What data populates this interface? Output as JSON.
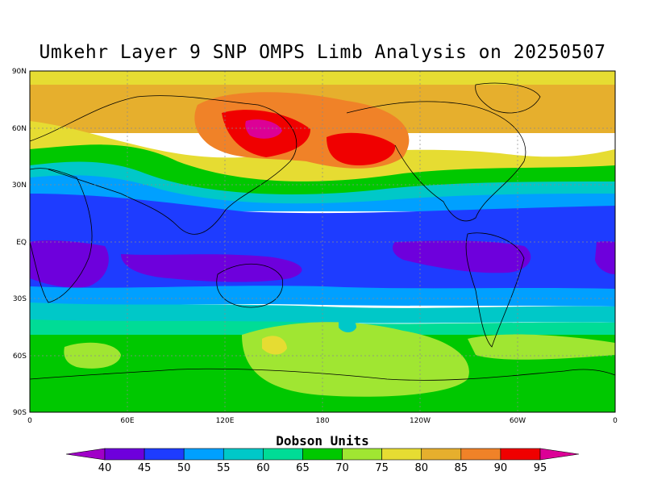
{
  "title": "Umkehr Layer 9 SNP OMPS Limb Analysis on 20250507",
  "lat_ticks": [
    "90N",
    "60N",
    "30N",
    "EQ",
    "30S",
    "60S",
    "90S"
  ],
  "lon_ticks": [
    "0",
    "60E",
    "120E",
    "180",
    "120W",
    "60W",
    "0"
  ],
  "colorbar": {
    "title": "Dobson Units",
    "levels": [
      40,
      45,
      50,
      55,
      60,
      65,
      70,
      75,
      80,
      85,
      90,
      95
    ],
    "labels": [
      "40",
      "45",
      "50",
      "55",
      "60",
      "65",
      "70",
      "75",
      "80",
      "85",
      "90",
      "95"
    ],
    "colors": [
      "#a000c8",
      "#6e00dc",
      "#1e3cff",
      "#00a0ff",
      "#00c8c8",
      "#00dc96",
      "#00c800",
      "#a0e632",
      "#e6dc32",
      "#e6af2d",
      "#f08228",
      "#f00000",
      "#dc0096"
    ]
  },
  "chart_data": {
    "type": "heatmap",
    "title": "Umkehr Layer 9 SNP OMPS Limb Analysis on 20250507",
    "xlabel": "",
    "ylabel": "",
    "xlim": [
      0,
      360
    ],
    "ylim": [
      -90,
      90
    ],
    "units": "Dobson Units",
    "grid": true,
    "features": [
      {
        "region": "North Pacific (~140E, 60N)",
        "value_range": [
          90,
          95
        ]
      },
      {
        "region": "North Pacific (~160W, 50N)",
        "value_range": [
          90,
          95
        ]
      },
      {
        "region": "Northern high latitudes",
        "value_range": [
          75,
          90
        ]
      },
      {
        "region": "Tropics",
        "value_range": [
          40,
          50
        ]
      },
      {
        "region": "Southern mid-latitudes",
        "value_range": [
          55,
          75
        ]
      }
    ]
  }
}
